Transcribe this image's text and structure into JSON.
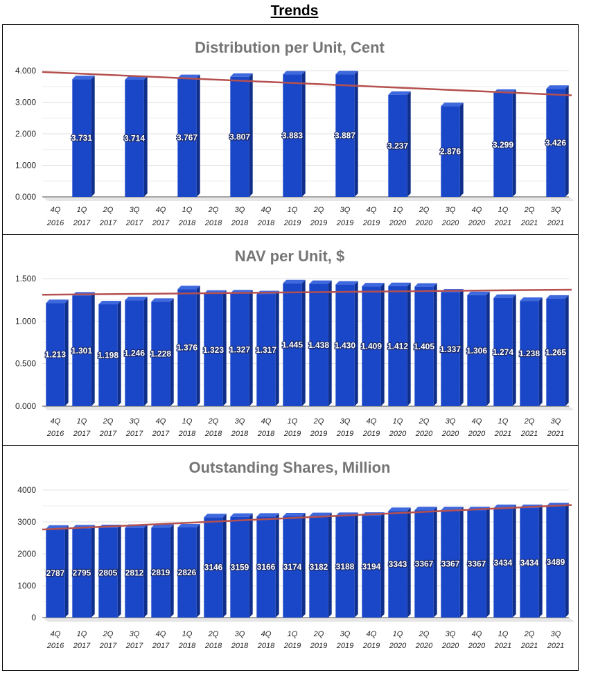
{
  "page": {
    "title": "Trends"
  },
  "colors": {
    "bar": "#1a47c8",
    "bar_side": "#0f2f8a",
    "bar_top": "#3e68dd",
    "trend": "#b5504f",
    "grid": "#e0e0e0",
    "title": "#757575"
  },
  "chart_data": [
    {
      "type": "bar",
      "title": "Distribution per Unit, Cent",
      "xlabel": "",
      "ylabel": "",
      "ylim": [
        0,
        4
      ],
      "yticks": [
        "0.000",
        "1.000",
        "2.000",
        "3.000",
        "4.000"
      ],
      "trendline": [
        3.96,
        3.22
      ],
      "categories": [
        [
          "4Q",
          "2016"
        ],
        [
          "1Q",
          "2017"
        ],
        [
          "2Q",
          "2017"
        ],
        [
          "3Q",
          "2017"
        ],
        [
          "4Q",
          "2017"
        ],
        [
          "1Q",
          "2018"
        ],
        [
          "2Q",
          "2018"
        ],
        [
          "3Q",
          "2018"
        ],
        [
          "4Q",
          "2018"
        ],
        [
          "1Q",
          "2019"
        ],
        [
          "2Q",
          "2019"
        ],
        [
          "3Q",
          "2019"
        ],
        [
          "4Q",
          "2019"
        ],
        [
          "1Q",
          "2020"
        ],
        [
          "2Q",
          "2020"
        ],
        [
          "3Q",
          "2020"
        ],
        [
          "4Q",
          "2020"
        ],
        [
          "1Q",
          "2021"
        ],
        [
          "2Q",
          "2021"
        ],
        [
          "3Q",
          "2021"
        ]
      ],
      "values": [
        null,
        3.731,
        null,
        3.714,
        null,
        3.767,
        null,
        3.807,
        null,
        3.883,
        null,
        3.887,
        null,
        3.237,
        null,
        2.876,
        null,
        3.299,
        null,
        3.426
      ],
      "labels": [
        "",
        "3.731",
        "",
        "3.714",
        "",
        "3.767",
        "",
        "3.807",
        "",
        "3.883",
        "",
        "3.887",
        "",
        "3.237",
        "",
        "2.876",
        "",
        "3.299",
        "",
        "3.426"
      ]
    },
    {
      "type": "bar",
      "title": "NAV per Unit, $",
      "xlabel": "",
      "ylabel": "",
      "ylim": [
        0,
        1.5
      ],
      "yticks": [
        "0.000",
        "0.500",
        "1.000",
        "1.500"
      ],
      "trendline": [
        1.31,
        1.37
      ],
      "categories": [
        [
          "4Q",
          "2016"
        ],
        [
          "1Q",
          "2017"
        ],
        [
          "2Q",
          "2017"
        ],
        [
          "3Q",
          "2017"
        ],
        [
          "4Q",
          "2017"
        ],
        [
          "1Q",
          "2018"
        ],
        [
          "2Q",
          "2018"
        ],
        [
          "3Q",
          "2018"
        ],
        [
          "4Q",
          "2018"
        ],
        [
          "1Q",
          "2019"
        ],
        [
          "2Q",
          "2019"
        ],
        [
          "3Q",
          "2019"
        ],
        [
          "4Q",
          "2019"
        ],
        [
          "1Q",
          "2020"
        ],
        [
          "2Q",
          "2020"
        ],
        [
          "3Q",
          "2020"
        ],
        [
          "4Q",
          "2020"
        ],
        [
          "1Q",
          "2021"
        ],
        [
          "2Q",
          "2021"
        ],
        [
          "3Q",
          "2021"
        ]
      ],
      "values": [
        1.213,
        1.301,
        1.198,
        1.246,
        1.228,
        1.376,
        1.323,
        1.327,
        1.317,
        1.445,
        1.438,
        1.43,
        1.409,
        1.412,
        1.405,
        1.337,
        1.306,
        1.274,
        1.238,
        1.265
      ],
      "labels": [
        "1.213",
        "1.301",
        "1.198",
        "1.246",
        "1.228",
        "1.376",
        "1.323",
        "1.327",
        "1.317",
        "1.445",
        "1.438",
        "1.430",
        "1.409",
        "1.412",
        "1.405",
        "1.337",
        "1.306",
        "1.274",
        "1.238",
        "1.265"
      ]
    },
    {
      "type": "bar",
      "title": "Outstanding Shares, Million",
      "xlabel": "",
      "ylabel": "",
      "ylim": [
        0,
        4000
      ],
      "yticks": [
        "0",
        "1000",
        "2000",
        "3000",
        "4000"
      ],
      "trendline": [
        2760,
        3530
      ],
      "categories": [
        [
          "4Q",
          "2016"
        ],
        [
          "1Q",
          "2017"
        ],
        [
          "2Q",
          "2017"
        ],
        [
          "3Q",
          "2017"
        ],
        [
          "4Q",
          "2017"
        ],
        [
          "1Q",
          "2018"
        ],
        [
          "2Q",
          "2018"
        ],
        [
          "3Q",
          "2018"
        ],
        [
          "4Q",
          "2018"
        ],
        [
          "1Q",
          "2019"
        ],
        [
          "2Q",
          "2019"
        ],
        [
          "3Q",
          "2019"
        ],
        [
          "4Q",
          "2019"
        ],
        [
          "1Q",
          "2020"
        ],
        [
          "2Q",
          "2020"
        ],
        [
          "3Q",
          "2020"
        ],
        [
          "4Q",
          "2020"
        ],
        [
          "1Q",
          "2021"
        ],
        [
          "2Q",
          "2021"
        ],
        [
          "3Q",
          "2021"
        ]
      ],
      "values": [
        2787,
        2795,
        2805,
        2812,
        2819,
        2826,
        3146,
        3159,
        3166,
        3174,
        3182,
        3188,
        3194,
        3343,
        3367,
        3367,
        3367,
        3434,
        3434,
        3489
      ],
      "labels": [
        "2787",
        "2795",
        "2805",
        "2812",
        "2819",
        "2826",
        "3146",
        "3159",
        "3166",
        "3174",
        "3182",
        "3188",
        "3194",
        "3343",
        "3367",
        "3367",
        "3367",
        "3434",
        "3434",
        "3489"
      ]
    }
  ]
}
